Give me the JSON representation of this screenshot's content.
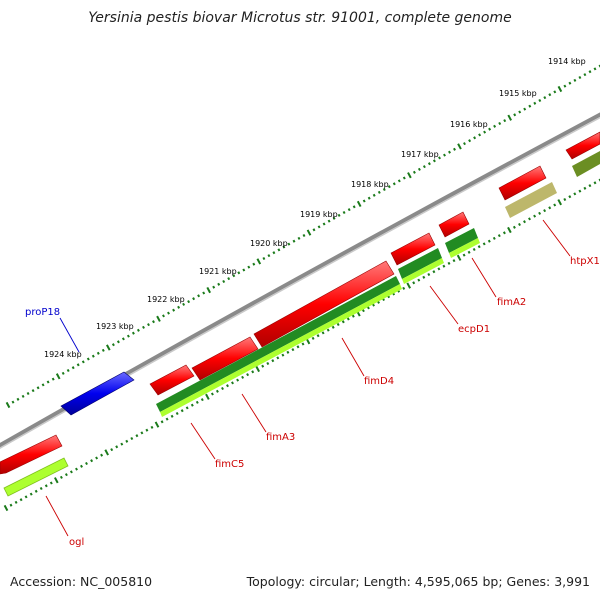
{
  "title": "Yersinia pestis biovar Microtus str. 91001, complete genome",
  "footer": {
    "accession": "Accession: NC_005810",
    "topology": "Topology: circular; Length: 4,595,065 bp; Genes: 3,991"
  },
  "ticks": [
    "1914 kbp",
    "1915 kbp",
    "1916 kbp",
    "1917 kbp",
    "1918 kbp",
    "1919 kbp",
    "1920 kbp",
    "1921 kbp",
    "1922 kbp",
    "1923 kbp",
    "1924 kbp"
  ],
  "genes": [
    {
      "name": "htpX1",
      "color": "#cc0000"
    },
    {
      "name": "fimA2",
      "color": "#cc0000"
    },
    {
      "name": "ecpD1",
      "color": "#cc0000"
    },
    {
      "name": "fimD4",
      "color": "#cc0000"
    },
    {
      "name": "fimA3",
      "color": "#cc0000"
    },
    {
      "name": "fimC5",
      "color": "#cc0000"
    },
    {
      "name": "ogl",
      "color": "#cc0000"
    },
    {
      "name": "proP18",
      "color": "#0000cc"
    }
  ],
  "colors": {
    "cds": "#ff0000",
    "reverse_cds": "#0000ee",
    "gc_dark": "#228B22",
    "gc_light": "#adff2f",
    "gc_tan": "#bdb76b",
    "gc_olive": "#6b8e23",
    "backbone": "#888888",
    "tick": "#1a7a1a"
  }
}
